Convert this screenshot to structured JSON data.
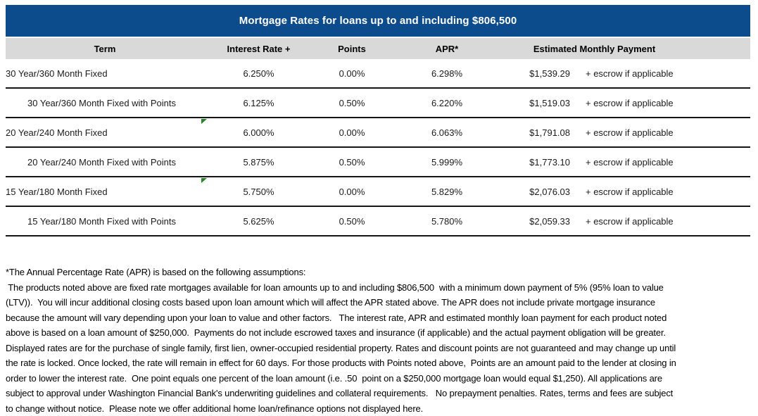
{
  "title": "Mortgage Rates for loans up to and including $806,500",
  "colors": {
    "header_bg": "#0d4c8c",
    "band_bg": "#d9d9d9",
    "divider": "#151515",
    "marker_green": "#258525"
  },
  "table": {
    "columns": {
      "term": "Term",
      "rate": "Interest Rate +",
      "points": "Points",
      "apr": "APR*",
      "payment": "Estimated Monthly Payment"
    },
    "rows": [
      {
        "term": "30 Year/360 Month Fixed",
        "rate": "6.250%",
        "points": "0.00%",
        "apr": "6.298%",
        "payment": "$1,539.29",
        "escrow": "+ escrow if applicable"
      },
      {
        "term": "30 Year/360 Month Fixed with Points",
        "rate": "6.125%",
        "points": "0.50%",
        "apr": "6.220%",
        "payment": "$1,519.03",
        "escrow": "+ escrow if applicable"
      },
      {
        "term": "20 Year/240 Month Fixed",
        "rate": "6.000%",
        "points": "0.00%",
        "apr": "6.063%",
        "payment": "$1,791.08",
        "escrow": "+ escrow if applicable"
      },
      {
        "term": "20 Year/240 Month Fixed with Points",
        "rate": "5.875%",
        "points": "0.50%",
        "apr": "5.999%",
        "payment": "$1,773.10",
        "escrow": "+ escrow if applicable"
      },
      {
        "term": "15 Year/180 Month Fixed",
        "rate": "5.750%",
        "points": "0.00%",
        "apr": "5.829%",
        "payment": "$2,076.03",
        "escrow": "+ escrow if applicable"
      },
      {
        "term": "15 Year/180 Month Fixed with Points",
        "rate": "5.625%",
        "points": "0.50%",
        "apr": "5.780%",
        "payment": "$2,059.33",
        "escrow": "+ escrow if applicable"
      }
    ]
  },
  "disclaimer": {
    "lines": [
      "*The Annual Percentage Rate (APR) is based on the following assumptions:",
      " The products noted above are fixed rate mortgages available for loan amounts up to and including $806,500  with a minimum down payment of 5% (95% loan to value",
      "(LTV)).  You will incur additional closing costs based upon loan amount which will affect the APR stated above. The APR does not include private mortgage insurance",
      "because the amount will vary depending upon your loan to value and other factors.   The interest rate, APR and estimated monthly loan payment for each product noted",
      "above is based on a loan amount of $250,000.  Payments do not include escrowed taxes and insurance (if applicable) and the actual payment obligation will be greater.",
      "Displayed rates are for the purchase of single family, first lien, owner-occupied residential property. Rates and discount points are not guaranteed and may change up until",
      "the rate is locked. Once locked, the rate will remain in effect for 60 days. For those products with Points noted above,  Points are an amount paid to the lender at closing in",
      "order to lower the interest rate.  One point equals one percent of the loan amount (i.e. .50  point on a $250,000 mortgage loan would equal $1,250). All applications are",
      "subject to approval under Washington Financial Bank's underwriting guidelines and collateral requirements.   No prepayment penalties. Rates, terms and fees are subject",
      "to change without notice.  Please note we offer additional home loan/refinance options not displayed here."
    ]
  }
}
